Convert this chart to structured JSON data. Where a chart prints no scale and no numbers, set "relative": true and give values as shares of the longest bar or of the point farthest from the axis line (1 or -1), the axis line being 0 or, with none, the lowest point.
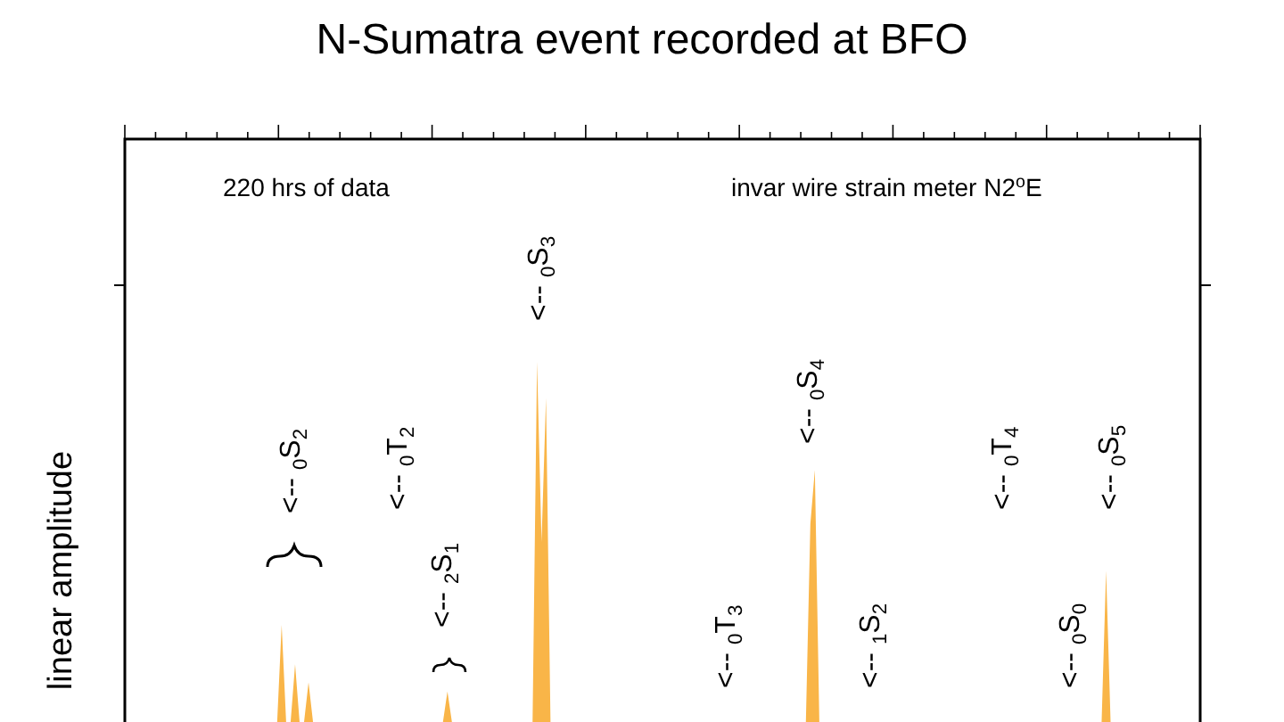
{
  "chart_data": {
    "type": "area",
    "title": "N-Sumatra event recorded at BFO",
    "ylabel": "linear amplitude",
    "relative": true,
    "color": "#f9b548",
    "categories": [
      null,
      null,
      null,
      null,
      null,
      null,
      null,
      null,
      null,
      null,
      null,
      null,
      null,
      null,
      null,
      null,
      null,
      null,
      null,
      null,
      null,
      null,
      null,
      null,
      null,
      null,
      null,
      null,
      null,
      null,
      null,
      null,
      null,
      null,
      null,
      null,
      null,
      null,
      null,
      null,
      null,
      null,
      null,
      null,
      null,
      null,
      null,
      null,
      null,
      null,
      null,
      null,
      null,
      null,
      null,
      null,
      null,
      null,
      null,
      null,
      null,
      null,
      null,
      null,
      null,
      null,
      null,
      null,
      null,
      null,
      null,
      null,
      null,
      null,
      null,
      null,
      null,
      null,
      null,
      null,
      null,
      null,
      null,
      null,
      null,
      null,
      null,
      null,
      null,
      null,
      null,
      null,
      null,
      null,
      null,
      null,
      null,
      null,
      null,
      null,
      null,
      null,
      null,
      null,
      null,
      null,
      null,
      null,
      null,
      null,
      null,
      null,
      null,
      null,
      null,
      null,
      null,
      null,
      null,
      null,
      null,
      null,
      null,
      null,
      null,
      null,
      null,
      null,
      null,
      null,
      null,
      null,
      null,
      null,
      null,
      null,
      null,
      null,
      null,
      null,
      null,
      null,
      null,
      null,
      null,
      null,
      null,
      null,
      null,
      null,
      null,
      null,
      null,
      null,
      null,
      null,
      null,
      null,
      null,
      null,
      null,
      null,
      null,
      null,
      null,
      null,
      null,
      null,
      null,
      null,
      null,
      null,
      null,
      null,
      null,
      null,
      null,
      null,
      null,
      null,
      null,
      null,
      null,
      null,
      null,
      null,
      null,
      null,
      null,
      null,
      null,
      null,
      null,
      null,
      null,
      null,
      null,
      null,
      null,
      null,
      null,
      null,
      null,
      null,
      null,
      null,
      null,
      null,
      null,
      null,
      null,
      null,
      null,
      null,
      null,
      null,
      null,
      null,
      null,
      null,
      null,
      null,
      null,
      null,
      null,
      null,
      null,
      null,
      null,
      null,
      null,
      null,
      null,
      null,
      null,
      null,
      null,
      null,
      null,
      null,
      null
    ],
    "values": [
      0,
      0,
      0,
      0,
      0,
      0,
      0,
      0,
      0,
      0,
      0,
      0,
      0,
      0,
      0,
      0,
      0,
      0,
      0,
      0,
      0,
      0,
      0,
      0,
      0,
      0,
      0,
      0,
      0,
      0,
      0,
      0,
      0,
      0,
      0,
      0.27,
      0,
      0,
      0.16,
      0,
      0,
      0.11,
      0,
      0,
      0,
      0,
      0,
      0,
      0,
      0,
      0,
      0,
      0,
      0,
      0,
      0,
      0,
      0,
      0,
      0,
      0,
      0,
      0,
      0,
      0,
      0,
      0,
      0,
      0,
      0,
      0,
      0,
      0.085,
      0,
      0,
      0,
      0,
      0,
      0,
      0,
      0,
      0,
      0,
      0,
      0,
      0,
      0,
      0,
      0,
      0,
      0,
      0,
      1,
      0.5,
      0.9,
      0,
      0,
      0,
      0,
      0,
      0,
      0,
      0,
      0,
      0,
      0,
      0,
      0,
      0,
      0,
      0,
      0,
      0,
      0,
      0,
      0,
      0,
      0,
      0,
      0,
      0,
      0,
      0,
      0,
      0,
      0,
      0,
      0,
      0,
      0,
      0,
      0,
      0,
      0,
      0,
      0,
      0,
      0,
      0,
      0,
      0,
      0,
      0,
      0,
      0,
      0,
      0,
      0,
      0,
      0,
      0,
      0,
      0,
      0.55,
      0.7,
      0,
      0,
      0,
      0,
      0,
      0,
      0,
      0,
      0,
      0,
      0,
      0,
      0,
      0,
      0,
      0,
      0,
      0,
      0,
      0,
      0,
      0,
      0,
      0,
      0,
      0,
      0,
      0,
      0,
      0,
      0,
      0,
      0,
      0,
      0,
      0,
      0,
      0,
      0,
      0,
      0,
      0,
      0,
      0,
      0,
      0,
      0,
      0,
      0,
      0,
      0,
      0,
      0,
      0,
      0,
      0,
      0,
      0,
      0,
      0,
      0,
      0,
      0,
      0,
      0.42,
      0,
      0,
      0,
      0,
      0,
      0,
      0,
      0,
      0,
      0,
      0,
      0,
      0,
      0,
      0,
      0,
      0,
      0,
      0,
      0,
      0
    ],
    "annotations": [
      "220 hrs of data",
      "invar wire strain meter N2$^{o}$E",
      "<-- $_{0}$S$_{2}$",
      "<-- $_{0}$T$_{2}$",
      "<-- $_{2}$S$_{1}$",
      "<-- $_{0}$S$_{3}$",
      "<-- $_{0}$T$_{3}$",
      "<-- $_{0}$S$_{4}$",
      "<-- $_{1}$S$_{2}$",
      "<-- $_{0}$T$_{4}$",
      "<-- $_{0}$S$_{0}$",
      "<-- $_{0}$S$_{5}$"
    ]
  }
}
